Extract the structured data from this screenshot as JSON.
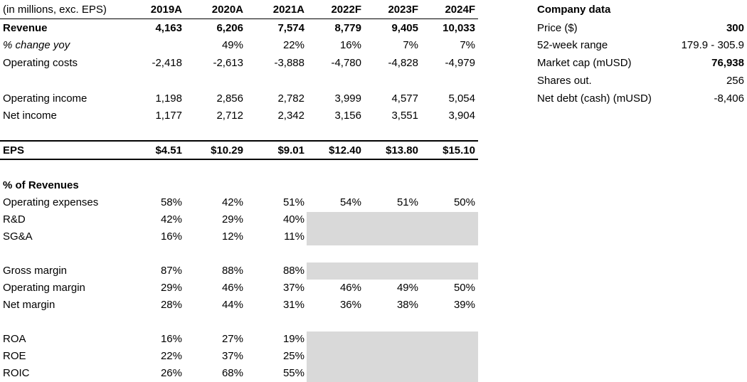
{
  "header": {
    "label": "(in millions, exc. EPS)",
    "years": [
      "2019A",
      "2020A",
      "2021A",
      "2022F",
      "2023F",
      "2024F"
    ]
  },
  "income": {
    "revenue": {
      "label": "Revenue",
      "values": [
        "4,163",
        "6,206",
        "7,574",
        "8,779",
        "9,405",
        "10,033"
      ]
    },
    "change_yoy": {
      "label": "% change yoy",
      "values": [
        "",
        "49%",
        "22%",
        "16%",
        "7%",
        "7%"
      ]
    },
    "operating_costs": {
      "label": "Operating costs",
      "values": [
        "-2,418",
        "-2,613",
        "-3,888",
        "-4,780",
        "-4,828",
        "-4,979"
      ]
    },
    "operating_income": {
      "label": "Operating income",
      "values": [
        "1,198",
        "2,856",
        "2,782",
        "3,999",
        "4,577",
        "5,054"
      ]
    },
    "net_income": {
      "label": "Net income",
      "values": [
        "1,177",
        "2,712",
        "2,342",
        "3,156",
        "3,551",
        "3,904"
      ]
    },
    "eps": {
      "label": "EPS",
      "values": [
        "$4.51",
        "$10.29",
        "$9.01",
        "$12.40",
        "$13.80",
        "$15.10"
      ]
    }
  },
  "pct_revenues": {
    "title": "% of Revenues",
    "operating_expenses": {
      "label": "Operating expenses",
      "values": [
        "58%",
        "42%",
        "51%",
        "54%",
        "51%",
        "50%"
      ]
    },
    "rnd": {
      "label": "R&D",
      "values": [
        "42%",
        "29%",
        "40%",
        "",
        "",
        ""
      ]
    },
    "sga": {
      "label": "SG&A",
      "values": [
        "16%",
        "12%",
        "11%",
        "",
        "",
        ""
      ]
    },
    "gross_margin": {
      "label": "Gross margin",
      "values": [
        "87%",
        "88%",
        "88%",
        "",
        "",
        ""
      ]
    },
    "operating_margin": {
      "label": "Operating margin",
      "values": [
        "29%",
        "46%",
        "37%",
        "46%",
        "49%",
        "50%"
      ]
    },
    "net_margin": {
      "label": "Net margin",
      "values": [
        "28%",
        "44%",
        "31%",
        "36%",
        "38%",
        "39%"
      ]
    },
    "roa": {
      "label": "ROA",
      "values": [
        "16%",
        "27%",
        "19%",
        "",
        "",
        ""
      ]
    },
    "roe": {
      "label": "ROE",
      "values": [
        "22%",
        "37%",
        "25%",
        "",
        "",
        ""
      ]
    },
    "roic": {
      "label": "ROIC",
      "values": [
        "26%",
        "68%",
        "55%",
        "",
        "",
        ""
      ]
    }
  },
  "company": {
    "title": "Company data",
    "rows": [
      {
        "label": "Price ($)",
        "value": "300"
      },
      {
        "label": "52-week range",
        "value": "179.9 - 305.9"
      },
      {
        "label": "Market cap (mUSD)",
        "value": "76,938"
      },
      {
        "label": "Shares out.",
        "value": "256"
      },
      {
        "label": "Net debt (cash) (mUSD)",
        "value": "-8,406"
      }
    ]
  },
  "colors": {
    "shade": "#d9d9d9",
    "rule": "#000000"
  }
}
